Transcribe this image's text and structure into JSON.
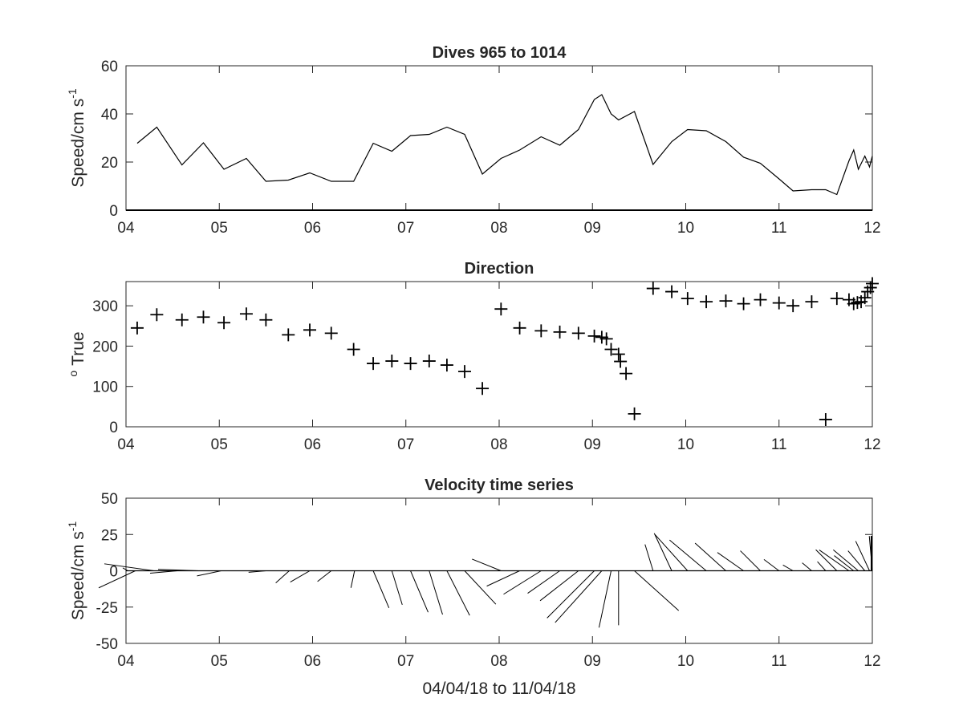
{
  "chart_data": [
    {
      "type": "line",
      "title": "Dives 965 to 1014",
      "ylabel": "Speed/cm s",
      "ylabel_sup": "-1",
      "xlim": [
        4,
        12
      ],
      "ylim": [
        0,
        60
      ],
      "xticks": [
        4,
        5,
        6,
        7,
        8,
        9,
        10,
        11,
        12
      ],
      "xticklabels": [
        "04",
        "05",
        "06",
        "07",
        "08",
        "09",
        "10",
        "11",
        "12"
      ],
      "yticks": [
        0,
        20,
        40,
        60
      ],
      "yticklabels": [
        "0",
        "20",
        "40",
        "60"
      ],
      "grid": false,
      "series": [
        {
          "x": [
            4.12,
            4.33,
            4.6,
            4.83,
            5.05,
            5.29,
            5.5,
            5.74,
            5.97,
            6.2,
            6.44,
            6.65,
            6.85,
            7.05,
            7.25,
            7.44,
            7.63,
            7.82,
            8.02,
            8.22,
            8.45,
            8.65,
            8.85,
            9.02,
            9.1,
            9.2,
            9.28,
            9.45,
            9.65,
            9.85,
            10.02,
            10.22,
            10.43,
            10.62,
            10.8,
            11.0,
            11.15,
            11.35,
            11.5,
            11.62,
            11.75,
            11.8,
            11.85,
            11.92,
            11.97,
            12.0
          ],
          "values": [
            27.8,
            34.5,
            18.8,
            28.0,
            17.0,
            21.5,
            12.0,
            12.5,
            15.5,
            12.0,
            12.0,
            27.8,
            24.5,
            31.0,
            31.5,
            34.5,
            31.5,
            15.0,
            21.5,
            25.0,
            30.5,
            27.0,
            33.5,
            46.0,
            48.0,
            40.0,
            37.5,
            41.0,
            19.0,
            28.5,
            33.5,
            33.0,
            28.5,
            22.0,
            19.5,
            13.0,
            8.0,
            8.5,
            8.5,
            6.5,
            20.5,
            25.0,
            17.0,
            22.5,
            18.0,
            22.5
          ]
        }
      ]
    },
    {
      "type": "scatter",
      "title": "Direction",
      "ylabel": "True",
      "ylabel_sup": "o",
      "xlim": [
        4,
        12
      ],
      "ylim": [
        0,
        360
      ],
      "xticks": [
        4,
        5,
        6,
        7,
        8,
        9,
        10,
        11,
        12
      ],
      "xticklabels": [
        "04",
        "05",
        "06",
        "07",
        "08",
        "09",
        "10",
        "11",
        "12"
      ],
      "yticks": [
        0,
        100,
        200,
        300
      ],
      "yticklabels": [
        "0",
        "100",
        "200",
        "300"
      ],
      "grid": false,
      "marker": "+",
      "series": [
        {
          "x": [
            4.12,
            4.33,
            4.6,
            4.83,
            5.05,
            5.29,
            5.5,
            5.74,
            5.97,
            6.2,
            6.44,
            6.65,
            6.85,
            7.05,
            7.25,
            7.44,
            7.63,
            7.82,
            8.02,
            8.22,
            8.45,
            8.65,
            8.85,
            9.02,
            9.1,
            9.15,
            9.2,
            9.28,
            9.3,
            9.36,
            9.45,
            9.65,
            9.85,
            10.02,
            10.22,
            10.43,
            10.62,
            10.8,
            11.0,
            11.15,
            11.35,
            11.5,
            11.62,
            11.75,
            11.8,
            11.84,
            11.88,
            11.92,
            11.95,
            11.98,
            12.0
          ],
          "values": [
            245,
            278,
            265,
            272,
            258,
            280,
            265,
            228,
            240,
            232,
            192,
            157,
            163,
            157,
            163,
            153,
            137,
            95,
            292,
            245,
            238,
            235,
            232,
            225,
            222,
            218,
            192,
            180,
            162,
            132,
            32,
            343,
            335,
            318,
            310,
            312,
            305,
            315,
            307,
            300,
            310,
            18,
            318,
            315,
            305,
            308,
            310,
            320,
            335,
            345,
            355
          ]
        }
      ]
    },
    {
      "type": "line",
      "title": "Velocity time series",
      "ylabel": "Speed/cm s",
      "ylabel_sup": "-1",
      "xlabel": "04/04/18 to 11/04/18",
      "xlim": [
        4,
        12
      ],
      "ylim": [
        -50,
        50
      ],
      "xticks": [
        4,
        5,
        6,
        7,
        8,
        9,
        10,
        11,
        12
      ],
      "xticklabels": [
        "04",
        "05",
        "06",
        "07",
        "08",
        "09",
        "10",
        "11",
        "12"
      ],
      "yticks": [
        -50,
        -25,
        0,
        25,
        50
      ],
      "yticklabels": [
        "-50",
        "-25",
        "0",
        "25",
        "50"
      ],
      "grid": false,
      "sticks": {
        "x": [
          4.02,
          4.1,
          4.3,
          4.55,
          4.78,
          5.02,
          5.5,
          5.75,
          5.97,
          6.2,
          6.45,
          6.65,
          6.85,
          7.05,
          7.25,
          7.44,
          7.63,
          8.02,
          8.22,
          8.45,
          8.65,
          8.85,
          9.02,
          9.1,
          9.2,
          9.28,
          9.45,
          9.65,
          9.85,
          10.02,
          10.22,
          10.43,
          10.62,
          10.8,
          11.0,
          11.15,
          11.35,
          11.5,
          11.62,
          11.75,
          11.8,
          11.85,
          11.92,
          11.97,
          12.0
        ],
        "speed": [
          4,
          27.8,
          34.5,
          18.8,
          28.0,
          17.0,
          12.0,
          12.5,
          15.5,
          12.0,
          12.0,
          27.8,
          24.5,
          31.0,
          31.5,
          34.5,
          31.5,
          21.5,
          25.0,
          30.5,
          27.0,
          33.5,
          46.0,
          48.0,
          40.0,
          37.5,
          41.0,
          19.0,
          28.5,
          33.5,
          33.0,
          28.5,
          22.0,
          19.5,
          13.0,
          8.0,
          8.5,
          8.5,
          20.5,
          25.0,
          17.0,
          22.5,
          18.0,
          22.5,
          24
        ],
        "direction": [
          300,
          245,
          278,
          265,
          272,
          258,
          265,
          228,
          240,
          232,
          192,
          157,
          163,
          157,
          163,
          153,
          137,
          292,
          245,
          238,
          235,
          232,
          225,
          222,
          192,
          180,
          132,
          343,
          335,
          318,
          310,
          312,
          305,
          315,
          307,
          300,
          310,
          318,
          315,
          305,
          308,
          310,
          320,
          335,
          355
        ]
      }
    }
  ]
}
